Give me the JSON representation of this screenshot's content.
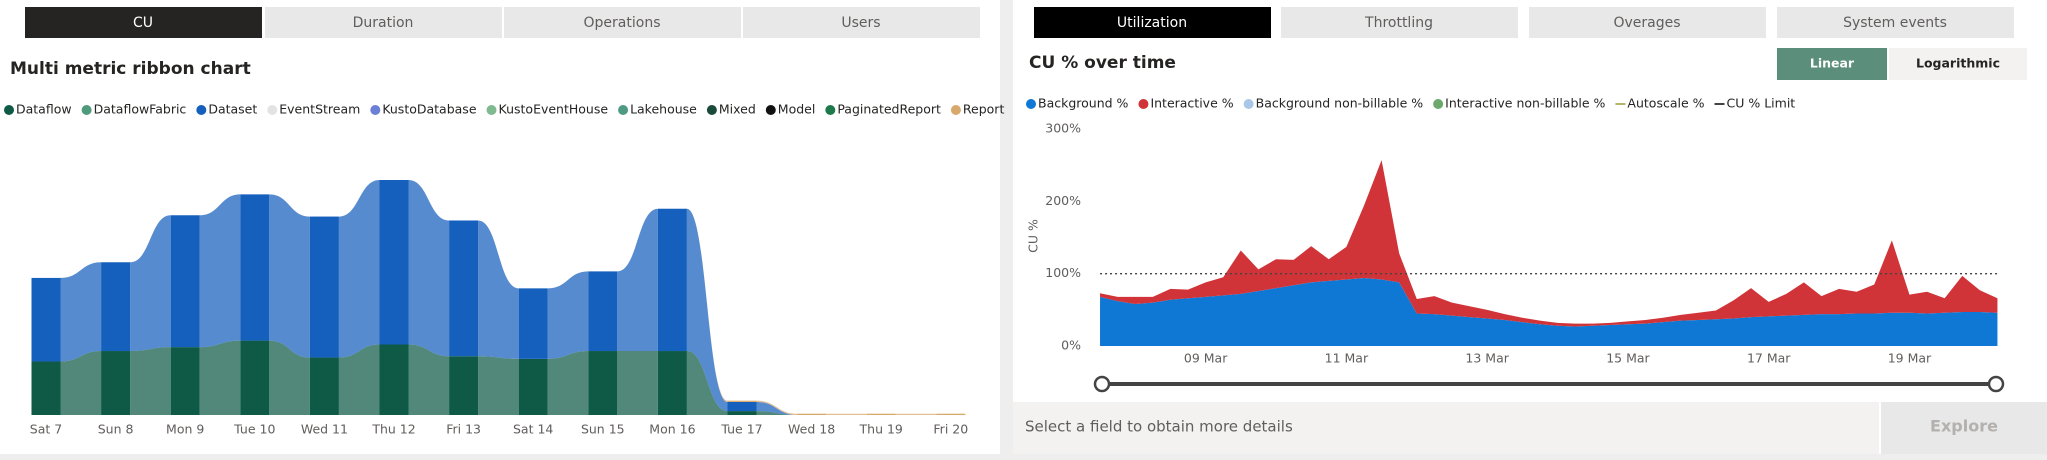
{
  "left_tabs": [
    "CU",
    "Duration",
    "Operations",
    "Users"
  ],
  "right_tabs": [
    "Utilization",
    "Throttling",
    "Overages",
    "System events"
  ],
  "scale_buttons": [
    "Linear",
    "Logarithmic"
  ],
  "details": {
    "prompt": "Select a field to obtain more details",
    "button": "Explore"
  },
  "chart_data": [
    {
      "type": "ribbon",
      "title": "Multi metric ribbon chart",
      "categories": [
        "Sat 7",
        "Sun 8",
        "Mon 9",
        "Tue 10",
        "Wed 11",
        "Thu 12",
        "Fri 13",
        "Sat 14",
        "Sun 15",
        "Mon 16",
        "Tue 17",
        "Wed 18",
        "Thu 19",
        "Fri 20"
      ],
      "series": [
        {
          "name": "Dataflow",
          "color": "#0e5a46",
          "values": [
            41,
            49,
            52,
            57,
            44,
            54,
            45,
            43,
            49,
            49,
            3,
            0,
            0,
            0
          ]
        },
        {
          "name": "DataflowFabric",
          "color": "#4f9a7a",
          "values": [
            0,
            0,
            0,
            0,
            0,
            0,
            0,
            0,
            0,
            0,
            0,
            0,
            0,
            0
          ]
        },
        {
          "name": "Dataset",
          "color": "#1560bd",
          "values": [
            64,
            68,
            101,
            112,
            108,
            126,
            104,
            54,
            61,
            109,
            7,
            0,
            0,
            0
          ]
        },
        {
          "name": "EventStream",
          "color": "#e3e3e3",
          "values": [
            0,
            0,
            0,
            0,
            0,
            0,
            0,
            0,
            0,
            0,
            0,
            0,
            0,
            0
          ]
        },
        {
          "name": "KustoDatabase",
          "color": "#6b7fd7",
          "values": [
            0,
            0,
            0,
            0,
            0,
            0,
            0,
            0,
            0,
            0,
            0,
            0,
            0,
            0
          ]
        },
        {
          "name": "KustoEventHouse",
          "color": "#7fb98f",
          "values": [
            0,
            0,
            0,
            0,
            0,
            0,
            0,
            0,
            0,
            0,
            0,
            0,
            0,
            0
          ]
        },
        {
          "name": "Lakehouse",
          "color": "#4e9a84",
          "values": [
            0,
            0,
            0,
            0,
            0,
            0,
            0,
            0,
            0,
            0,
            0,
            0,
            0,
            0
          ]
        },
        {
          "name": "Mixed",
          "color": "#1a4a3a",
          "values": [
            0,
            0,
            0,
            0,
            0,
            0,
            0,
            0,
            0,
            0,
            0,
            0,
            0,
            0
          ]
        },
        {
          "name": "Model",
          "color": "#111111",
          "values": [
            0,
            0,
            0,
            0,
            0,
            0,
            0,
            0,
            0,
            0,
            0,
            0,
            0,
            0
          ]
        },
        {
          "name": "PaginatedReport",
          "color": "#1e7a4a",
          "values": [
            0,
            0,
            0,
            0,
            0,
            0,
            0,
            0,
            0,
            0,
            0,
            0,
            0,
            0
          ]
        },
        {
          "name": "Report",
          "color": "#d9a86c",
          "values": [
            0,
            0,
            0,
            0,
            0,
            0,
            0,
            0,
            0,
            0,
            1,
            1,
            1,
            1
          ]
        }
      ]
    },
    {
      "type": "area",
      "title": "CU % over time",
      "y_label": "CU %",
      "stacked": true,
      "log_scale": false,
      "x": [
        7.5,
        7.75,
        8,
        8.25,
        8.5,
        8.75,
        9,
        9.25,
        9.5,
        9.75,
        10,
        10.25,
        10.5,
        10.75,
        11,
        11.25,
        11.5,
        11.75,
        12,
        12.25,
        12.5,
        12.75,
        13,
        13.25,
        13.5,
        13.75,
        14,
        14.25,
        14.5,
        14.75,
        15,
        15.25,
        15.5,
        15.75,
        16,
        16.25,
        16.5,
        16.75,
        17,
        17.25,
        17.5,
        17.75,
        18,
        18.25,
        18.5,
        18.75,
        19,
        19.25,
        19.5,
        19.75,
        20,
        20.25
      ],
      "xlim": [
        7.4,
        20.4
      ],
      "xticks": [
        {
          "value": 9,
          "label": "09 Mar"
        },
        {
          "value": 11,
          "label": "11 Mar"
        },
        {
          "value": 13,
          "label": "13 Mar"
        },
        {
          "value": 15,
          "label": "15 Mar"
        },
        {
          "value": 17,
          "label": "17 Mar"
        },
        {
          "value": 19,
          "label": "19 Mar"
        }
      ],
      "ylim": [
        0,
        300
      ],
      "yticks": [
        {
          "value": 0,
          "label": "0%"
        },
        {
          "value": 100,
          "label": "100%"
        },
        {
          "value": 200,
          "label": "200%"
        },
        {
          "value": 300,
          "label": "300%"
        }
      ],
      "series": [
        {
          "name": "Background %",
          "color": "#0f78d4",
          "marker": "dot",
          "values": [
            68,
            62,
            58,
            60,
            64,
            66,
            68,
            70,
            72,
            76,
            80,
            84,
            88,
            90,
            92,
            94,
            92,
            88,
            45,
            44,
            42,
            40,
            38,
            36,
            33,
            30,
            28,
            27,
            28,
            29,
            30,
            31,
            33,
            35,
            36,
            37,
            38,
            40,
            41,
            42,
            43,
            44,
            44,
            45,
            45,
            46,
            46,
            45,
            46,
            47,
            47,
            46
          ]
        },
        {
          "name": "Interactive %",
          "color": "#d13438",
          "marker": "dot",
          "values": [
            5,
            6,
            10,
            8,
            15,
            12,
            20,
            25,
            60,
            30,
            40,
            35,
            50,
            30,
            45,
            100,
            165,
            40,
            20,
            25,
            18,
            15,
            12,
            8,
            6,
            5,
            4,
            4,
            3,
            3,
            4,
            5,
            6,
            8,
            10,
            12,
            25,
            40,
            20,
            30,
            45,
            25,
            35,
            30,
            40,
            100,
            25,
            30,
            20,
            50,
            30,
            20
          ]
        },
        {
          "name": "Background non-billable %",
          "color": "#a9c8e8",
          "marker": "dot",
          "values": [
            null,
            null,
            null,
            null,
            null,
            null,
            null,
            null,
            null,
            null,
            null,
            null,
            null,
            null,
            null,
            null,
            null,
            null,
            null,
            null,
            null,
            null,
            null,
            null,
            null,
            null,
            null,
            null,
            null,
            null,
            null,
            null,
            null,
            null,
            null,
            null,
            null,
            null,
            null,
            null,
            null,
            null,
            null,
            null,
            null,
            null,
            null,
            null,
            null,
            null,
            null,
            null
          ]
        },
        {
          "name": "Interactive non-billable %",
          "color": "#6aa96a",
          "marker": "dot",
          "values": [
            null,
            null,
            null,
            null,
            null,
            null,
            null,
            null,
            null,
            null,
            null,
            null,
            null,
            null,
            null,
            null,
            null,
            null,
            null,
            null,
            null,
            null,
            null,
            null,
            null,
            null,
            null,
            null,
            null,
            null,
            null,
            null,
            null,
            null,
            null,
            null,
            null,
            null,
            null,
            null,
            null,
            null,
            null,
            null,
            null,
            null,
            null,
            null,
            null,
            null,
            null,
            null
          ]
        },
        {
          "name": "Autoscale %",
          "color": "#b5b56a",
          "marker": "line",
          "values": [
            null,
            null,
            null,
            null,
            null,
            null,
            null,
            null,
            null,
            null,
            null,
            null,
            null,
            null,
            null,
            null,
            null,
            null,
            null,
            null,
            null,
            null,
            null,
            null,
            null,
            null,
            null,
            null,
            null,
            null,
            null,
            null,
            null,
            null,
            null,
            null,
            null,
            null,
            null,
            null,
            null,
            null,
            null,
            null,
            null,
            null,
            null,
            null,
            null,
            null,
            null,
            null
          ]
        },
        {
          "name": "CU % Limit",
          "color": "#444444",
          "marker": "line",
          "dashed": true,
          "values": [
            100,
            100,
            100,
            100,
            100,
            100,
            100,
            100,
            100,
            100,
            100,
            100,
            100,
            100,
            100,
            100,
            100,
            100,
            100,
            100,
            100,
            100,
            100,
            100,
            100,
            100,
            100,
            100,
            100,
            100,
            100,
            100,
            100,
            100,
            100,
            100,
            100,
            100,
            100,
            100,
            100,
            100,
            100,
            100,
            100,
            100,
            100,
            100,
            100,
            100,
            100,
            100
          ]
        }
      ]
    }
  ]
}
